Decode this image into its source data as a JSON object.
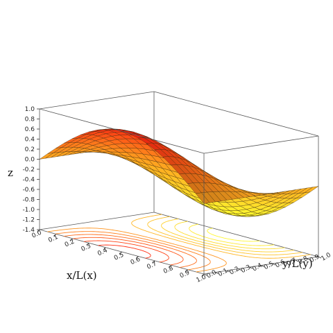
{
  "chart_data": {
    "type": "surface3d",
    "title": "",
    "xlabel": "x/L(x)",
    "ylabel": "y/L(y)",
    "zlabel": "z",
    "x_range": [
      0,
      1
    ],
    "y_range": [
      0,
      1
    ],
    "zlim": [
      -1.4,
      1.0
    ],
    "x_ticks": [
      "0.0",
      "0.1",
      "0.2",
      "0.3",
      "0.4",
      "0.5",
      "0.6",
      "0.7",
      "0.8",
      "0.9",
      "1.0"
    ],
    "y_ticks": [
      "0.0",
      "0.1",
      "0.2",
      "0.3",
      "0.4",
      "0.5",
      "0.6",
      "0.7",
      "0.8",
      "0.9",
      "1.0"
    ],
    "z_ticks": [
      "1.0",
      "0.8",
      "0.6",
      "0.4",
      "0.2",
      "0.0",
      "-0.2",
      "-0.4",
      "-0.6",
      "-0.8",
      "-1.0",
      "-1.2",
      "-1.4"
    ],
    "surface_function": "z = sin(pi*x) * cos(pi*y)",
    "surface_grid": 20,
    "peak": {
      "x": 0.5,
      "y": 0.0,
      "z": 1.0
    },
    "trough": {
      "x": 0.5,
      "y": 1.0,
      "z": -1.0
    },
    "contour_projection": "floor",
    "contour_levels": [
      -0.9,
      -0.75,
      -0.6,
      -0.45,
      -0.3,
      -0.15,
      0.15,
      0.3,
      0.45,
      0.6,
      0.75,
      0.9
    ],
    "colormap": [
      "#ffff30",
      "#ffa820",
      "#ff2010"
    ],
    "grid": false,
    "box": true
  }
}
